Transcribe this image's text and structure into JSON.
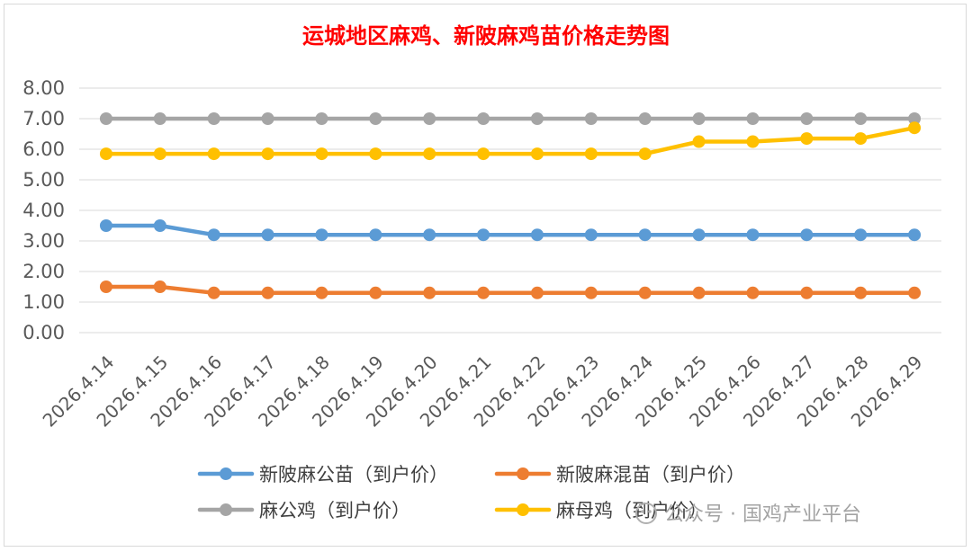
{
  "chart_data": {
    "type": "line",
    "title": "运城地区麻鸡、新陂麻鸡苗价格走势图",
    "xlabel": "",
    "ylabel": "",
    "ylim": [
      0,
      8
    ],
    "yticks": [
      "0.00",
      "1.00",
      "2.00",
      "3.00",
      "4.00",
      "5.00",
      "6.00",
      "7.00",
      "8.00"
    ],
    "grid": true,
    "legend_position": "bottom",
    "categories": [
      "2026.4.14",
      "2026.4.15",
      "2026.4.16",
      "2026.4.17",
      "2026.4.18",
      "2026.4.19",
      "2026.4.20",
      "2026.4.21",
      "2026.4.22",
      "2026.4.23",
      "2026.4.24",
      "2026.4.25",
      "2026.4.26",
      "2026.4.27",
      "2026.4.28",
      "2026.4.29"
    ],
    "series": [
      {
        "name": "新陂麻公苗（到户价）",
        "color": "#5b9bd5",
        "values": [
          3.5,
          3.5,
          3.2,
          3.2,
          3.2,
          3.2,
          3.2,
          3.2,
          3.2,
          3.2,
          3.2,
          3.2,
          3.2,
          3.2,
          3.2,
          3.2
        ]
      },
      {
        "name": "新陂麻混苗（到户价）",
        "color": "#ed7d31",
        "values": [
          1.5,
          1.5,
          1.3,
          1.3,
          1.3,
          1.3,
          1.3,
          1.3,
          1.3,
          1.3,
          1.3,
          1.3,
          1.3,
          1.3,
          1.3,
          1.3
        ]
      },
      {
        "name": "麻公鸡（到户价）",
        "color": "#a5a5a5",
        "values": [
          7.0,
          7.0,
          7.0,
          7.0,
          7.0,
          7.0,
          7.0,
          7.0,
          7.0,
          7.0,
          7.0,
          7.0,
          7.0,
          7.0,
          7.0,
          7.0
        ]
      },
      {
        "name": "麻母鸡（到户价）",
        "color": "#ffc000",
        "values": [
          5.85,
          5.85,
          5.85,
          5.85,
          5.85,
          5.85,
          5.85,
          5.85,
          5.85,
          5.85,
          5.85,
          6.25,
          6.25,
          6.35,
          6.35,
          6.7
        ]
      }
    ]
  },
  "watermark": {
    "text": "公众号 · 国鸡产业平台"
  }
}
